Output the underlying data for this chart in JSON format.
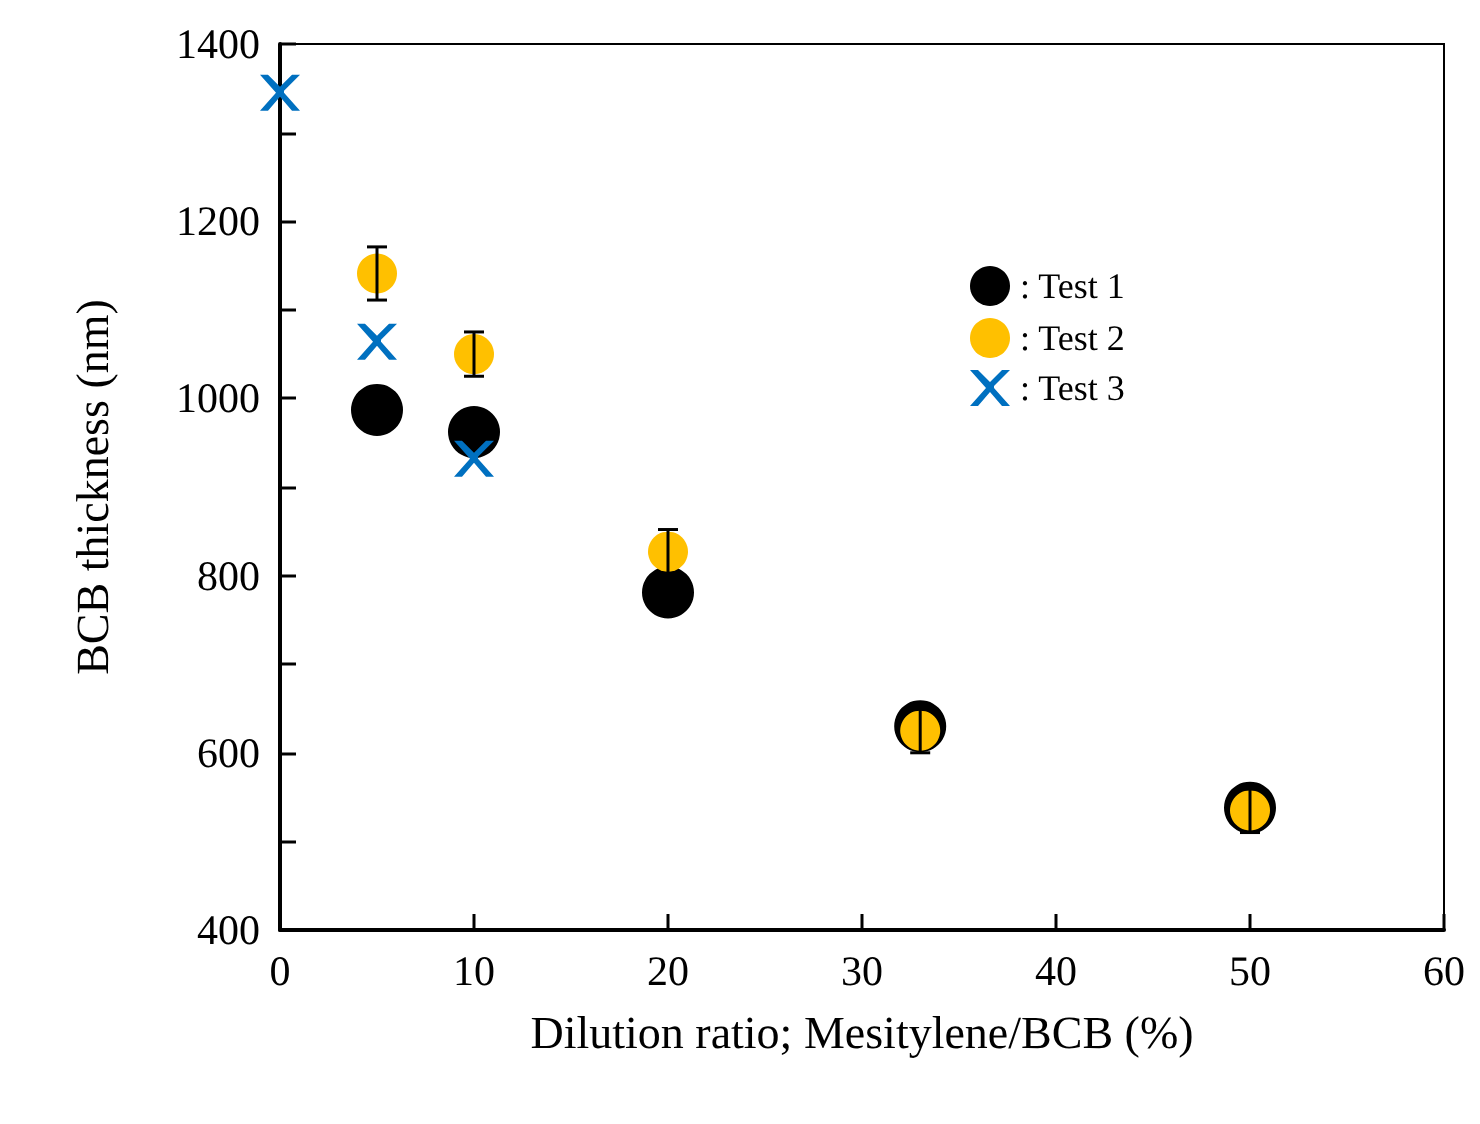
{
  "chart_data": {
    "type": "scatter",
    "xlabel": "Dilution ratio; Mesitylene/BCB (%)",
    "ylabel": "BCB thickness (nm)",
    "xlim": [
      0,
      60
    ],
    "xticks": [
      0,
      10,
      20,
      30,
      40,
      50,
      60
    ],
    "ylim": [
      400,
      1400
    ],
    "yticks": [
      400,
      {
        "value": 500,
        "label": null
      },
      600,
      {
        "value": 700,
        "label": null
      },
      800,
      {
        "value": 900,
        "label": null
      },
      1000,
      {
        "value": 1100,
        "label": null
      },
      1200,
      {
        "value": 1300,
        "label": null
      },
      1400
    ],
    "grid": false,
    "legend": "top right",
    "series": [
      {
        "name": ": Test 1",
        "color": "#000000",
        "marker": "circle",
        "x": [
          5,
          10,
          20,
          33,
          50
        ],
        "values": [
          987,
          962,
          781,
          630,
          538
        ]
      },
      {
        "name": ": Test 2",
        "color": "#ffc000",
        "marker": "circle",
        "x": [
          5,
          10,
          20,
          33,
          50
        ],
        "values": [
          1141,
          1050,
          827,
          625,
          535
        ],
        "errors": [
          30,
          25,
          25,
          25,
          25
        ]
      },
      {
        "name": ": Test 3",
        "color": "#0070c0",
        "marker": "cross",
        "x": [
          0,
          5,
          10
        ],
        "values": [
          1345,
          1064,
          932
        ]
      }
    ]
  }
}
